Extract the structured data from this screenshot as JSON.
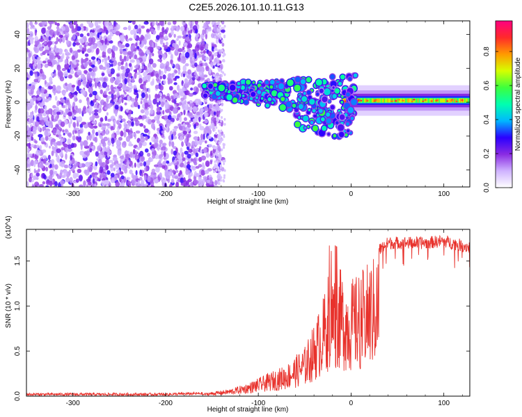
{
  "figure": {
    "title": "C2E5.2026.101.10.11.G13"
  },
  "chart_data": [
    {
      "type": "heatmap",
      "xlabel": "Height of straight line (km)",
      "ylabel": "Frequency (Hz)",
      "xlim": [
        -350,
        128
      ],
      "ylim": [
        -50,
        48
      ],
      "x_ticks": [
        -300,
        -200,
        -100,
        0,
        100
      ],
      "y_ticks": [
        -40,
        -20,
        0,
        20,
        40
      ],
      "colorbar": {
        "label": "Normalized spectral amplitude",
        "range": [
          0,
          0.98
        ],
        "ticks": [
          0.0,
          0.2,
          0.4,
          0.6,
          0.8
        ],
        "colormap": [
          "#ffffff",
          "#cfb3ff",
          "#8a2be2",
          "#2b00ff",
          "#00b7ff",
          "#00ffb0",
          "#3dff3d",
          "#d6ff00",
          "#ff9a00",
          "#ff2a2a",
          "#ff0080"
        ]
      },
      "features": {
        "noise_region_x": [
          -350,
          -148
        ],
        "carrier_ridge_start_x": -160,
        "carrier_ridge_freq": 1,
        "carrier_strong_from_x": 0
      }
    },
    {
      "type": "line",
      "xlabel": "Height of straight line (km)",
      "ylabel": "SNR (10 * v/v)",
      "y_scale_note": "(x10^4)",
      "xlim": [
        -350,
        128
      ],
      "ylim": [
        0,
        1.85
      ],
      "x_ticks": [
        -300,
        -200,
        -100,
        0,
        100
      ],
      "y_ticks": [
        0.0,
        0.5,
        1.0,
        1.5
      ],
      "series": [
        {
          "color": "#e8322c",
          "envelope_x": [
            -350,
            -200,
            -160,
            -130,
            -110,
            -90,
            -70,
            -50,
            -40,
            -30,
            -25,
            -20,
            -15,
            -10,
            -5,
            0,
            10,
            20,
            30,
            40,
            60,
            80,
            100,
            128
          ],
          "envelope_y": [
            0.02,
            0.02,
            0.03,
            0.08,
            0.15,
            0.25,
            0.35,
            0.55,
            0.8,
            1.1,
            1.35,
            1.4,
            1.45,
            1.4,
            1.3,
            1.3,
            1.38,
            1.5,
            1.62,
            1.7,
            1.7,
            1.7,
            1.72,
            1.65
          ]
        }
      ]
    }
  ]
}
